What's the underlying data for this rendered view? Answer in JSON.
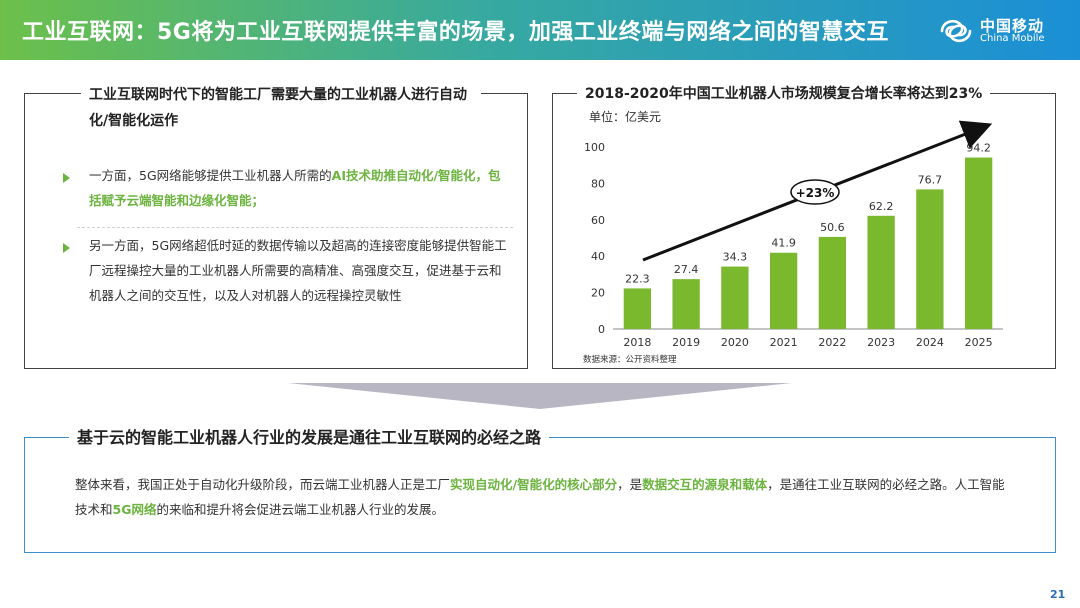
{
  "header": {
    "title": "工业互联网：5G将为工业互联网提供丰富的场景，加强工业终端与网络之间的智慧交互",
    "logo_cn": "中国移动",
    "logo_en": "China Mobile"
  },
  "left_panel": {
    "title": "工业互联网时代下的智能工厂需要大量的工业机器人进行自动化/智能化运作",
    "bullet1": {
      "text": "一方面，5G网络能够提供工业机器人所需的",
      "highlight": "AI技术助推自动化/智能化，包括赋予云端智能和边缘化智能；"
    },
    "bullet2": {
      "text": "另一方面，5G网络超低时延的数据传输以及超高的连接密度能够提供智能工厂远程操控大量的工业机器人所需要的高精准、高强度交互，促进基于云和机器人之间的交互性，以及人对机器人的远程操控灵敏性"
    }
  },
  "right_panel": {
    "title": "2018-2020年中国工业机器人市场规模复合增长率将达到23%",
    "unit": "单位：亿美元",
    "growth_label": "+23%",
    "source": "数据来源：公开资料整理"
  },
  "chart_data": {
    "type": "bar",
    "title": "2018-2020年中国工业机器人市场规模复合增长率将达到23%",
    "ylabel": "单位：亿美元",
    "categories": [
      "2018",
      "2019",
      "2020",
      "2021",
      "2022",
      "2023",
      "2024",
      "2025"
    ],
    "values": [
      22.3,
      27.4,
      34.3,
      41.9,
      50.6,
      62.2,
      76.7,
      94.2
    ],
    "value_labels": [
      "22.3",
      "27.4",
      "34.3",
      "41.9",
      "50.6",
      "62.2",
      "76.7",
      "94.2"
    ],
    "ylim": [
      0,
      100
    ],
    "yticks": [
      0,
      20,
      40,
      60,
      80,
      100
    ],
    "ytick_labels": [
      "0",
      "20",
      "40",
      "60",
      "80",
      "100"
    ],
    "annotation": "+23%",
    "bar_color": "#7ab82e",
    "grid": false,
    "legend": "none"
  },
  "bottom_panel": {
    "title": "基于云的智能工业机器人行业的发展是通往工业互联网的必经之路",
    "text_a": "整体来看，我国正处于自动化升级阶段，而云端工业机器人正是工厂",
    "highlight_a": "实现自动化/智能化的核心部分",
    "text_b": "，是",
    "highlight_b": "数据交互的源泉和载体",
    "text_c": "，是通往工业互联网的必经之路。人工智能技术和",
    "highlight_c": "5G网络",
    "text_d": "的来临和提升将会促进云端工业机器人行业的发展。"
  },
  "page_number": "21",
  "colors": {
    "accent_green": "#6cb33f",
    "header_start": "#6cc04a",
    "header_end": "#1b8fd6",
    "frame_blue": "#3c8fc8"
  }
}
